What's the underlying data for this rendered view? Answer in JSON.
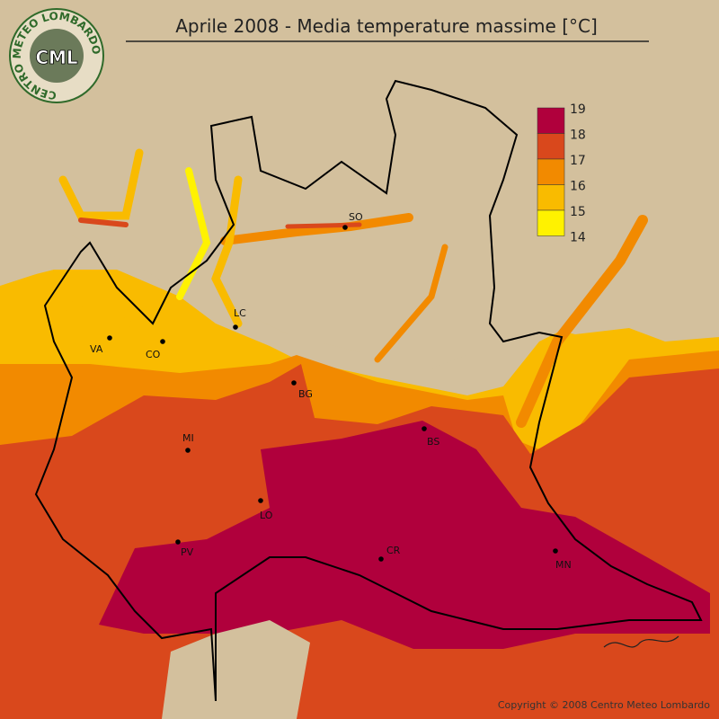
{
  "title": "Aprile 2008 - Media temperature massime [°C]",
  "logo": {
    "ring": "CENTRO METEO LOMBARDO",
    "initials": "CML"
  },
  "legend": {
    "labels": [
      19,
      18,
      17,
      16,
      15,
      14
    ],
    "colors": [
      "#b0003c",
      "#d9481c",
      "#f28a00",
      "#f9bb00",
      "#fff200"
    ]
  },
  "cities": [
    "SO",
    "LC",
    "VA",
    "CO",
    "BG",
    "MI",
    "BS",
    "LO",
    "CR",
    "PV",
    "MN"
  ],
  "copyright": "Copyright © 2008 Centro Meteo Lombardo"
}
